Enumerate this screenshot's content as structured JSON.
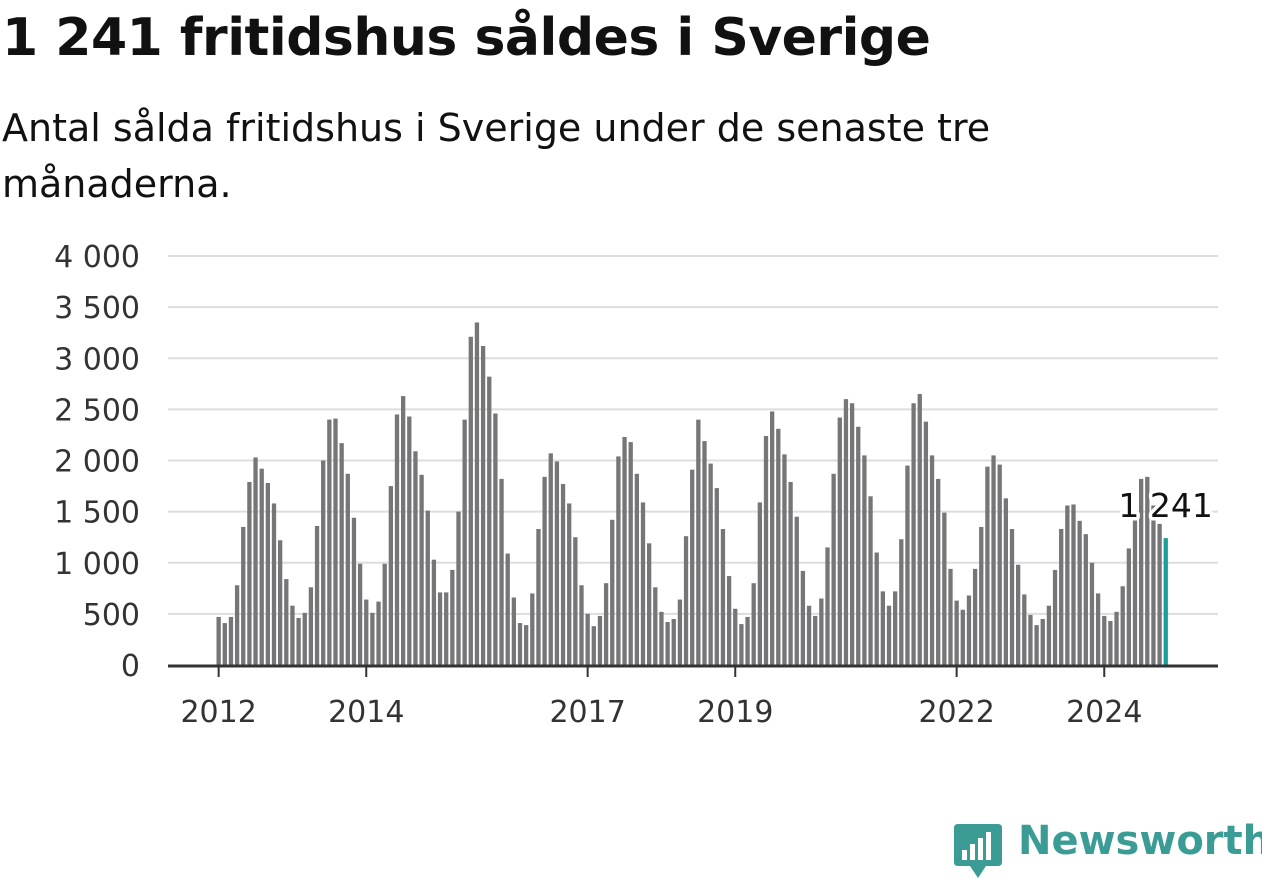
{
  "title": "1 241 fritidshus såldes i Sverige",
  "subtitle": "Antal sålda fritidshus i Sverige under de senaste tre månaderna.",
  "brand": {
    "name": "Newsworthy",
    "color": "#3a9c95",
    "icon": "bar-chart-badge-icon"
  },
  "colors": {
    "bar": "#767678",
    "highlight": "#1a9e99",
    "grid": "#dddddd",
    "axis": "#333333"
  },
  "chart_data": {
    "type": "bar",
    "start": "2012-01",
    "frequency": "monthly",
    "y_ticks": [
      0,
      500,
      1000,
      1500,
      2000,
      2500,
      3000,
      3500,
      4000
    ],
    "y_tick_labels": [
      "0",
      "500",
      "1 000",
      "1 500",
      "2 000",
      "2 500",
      "3 000",
      "3 500",
      "4 000"
    ],
    "ylim": [
      0,
      4000
    ],
    "x_tick_labels": [
      "2012",
      "2014",
      "2017",
      "2019",
      "2022",
      "2024"
    ],
    "x_tick_months": [
      "2012-01",
      "2014-01",
      "2017-01",
      "2019-01",
      "2022-01",
      "2024-01"
    ],
    "grid": true,
    "highlight_last": true,
    "last_label": "1 241",
    "values": [
      470,
      410,
      470,
      780,
      1350,
      1790,
      2030,
      1920,
      1780,
      1580,
      1220,
      840,
      580,
      460,
      510,
      760,
      1360,
      2000,
      2400,
      2410,
      2170,
      1870,
      1440,
      990,
      640,
      510,
      620,
      990,
      1750,
      2450,
      2630,
      2430,
      2090,
      1860,
      1510,
      1030,
      710,
      710,
      930,
      1500,
      2400,
      3210,
      3350,
      3120,
      2820,
      2460,
      1820,
      1090,
      660,
      410,
      390,
      700,
      1330,
      1840,
      2070,
      1990,
      1770,
      1580,
      1250,
      780,
      500,
      380,
      480,
      800,
      1420,
      2040,
      2230,
      2180,
      1870,
      1590,
      1190,
      760,
      520,
      420,
      450,
      640,
      1260,
      1910,
      2400,
      2190,
      1970,
      1730,
      1330,
      870,
      550,
      400,
      470,
      800,
      1590,
      2240,
      2480,
      2310,
      2060,
      1790,
      1450,
      920,
      580,
      480,
      650,
      1150,
      1870,
      2420,
      2600,
      2560,
      2330,
      2050,
      1650,
      1100,
      720,
      580,
      720,
      1230,
      1950,
      2560,
      2650,
      2380,
      2050,
      1820,
      1490,
      940,
      630,
      540,
      680,
      940,
      1350,
      1940,
      2050,
      1960,
      1630,
      1330,
      980,
      690,
      490,
      390,
      450,
      580,
      930,
      1330,
      1560,
      1570,
      1410,
      1280,
      1000,
      700,
      480,
      430,
      520,
      770,
      1140,
      1450,
      1820,
      1840,
      1560,
      1380,
      1241
    ]
  }
}
